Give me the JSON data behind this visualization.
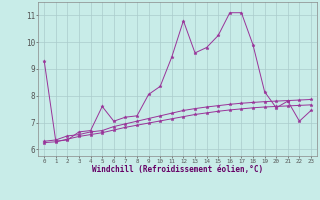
{
  "background_color": "#c8ece8",
  "grid_color": "#aacccc",
  "line_color": "#993399",
  "xlim": [
    -0.5,
    23.5
  ],
  "ylim": [
    5.75,
    11.5
  ],
  "yticks": [
    6,
    7,
    8,
    9,
    10,
    11
  ],
  "xticks": [
    0,
    1,
    2,
    3,
    4,
    5,
    6,
    7,
    8,
    9,
    10,
    11,
    12,
    13,
    14,
    15,
    16,
    17,
    18,
    19,
    20,
    21,
    22,
    23
  ],
  "xlabel": "Windchill (Refroidissement éolien,°C)",
  "series1_y": [
    9.3,
    6.3,
    6.35,
    6.65,
    6.7,
    7.6,
    7.05,
    7.2,
    7.25,
    8.05,
    8.35,
    9.45,
    10.8,
    9.6,
    9.8,
    10.25,
    11.1,
    11.1,
    9.9,
    8.15,
    7.55,
    7.8,
    7.05,
    7.45
  ],
  "series2_y": [
    6.3,
    6.35,
    6.5,
    6.55,
    6.65,
    6.7,
    6.85,
    6.95,
    7.05,
    7.15,
    7.25,
    7.35,
    7.45,
    7.52,
    7.58,
    7.63,
    7.68,
    7.72,
    7.75,
    7.78,
    7.8,
    7.82,
    7.84,
    7.86
  ],
  "series3_y": [
    6.25,
    6.28,
    6.38,
    6.48,
    6.55,
    6.62,
    6.72,
    6.82,
    6.9,
    6.98,
    7.06,
    7.14,
    7.22,
    7.3,
    7.36,
    7.42,
    7.47,
    7.51,
    7.55,
    7.58,
    7.6,
    7.62,
    7.64,
    7.66
  ]
}
